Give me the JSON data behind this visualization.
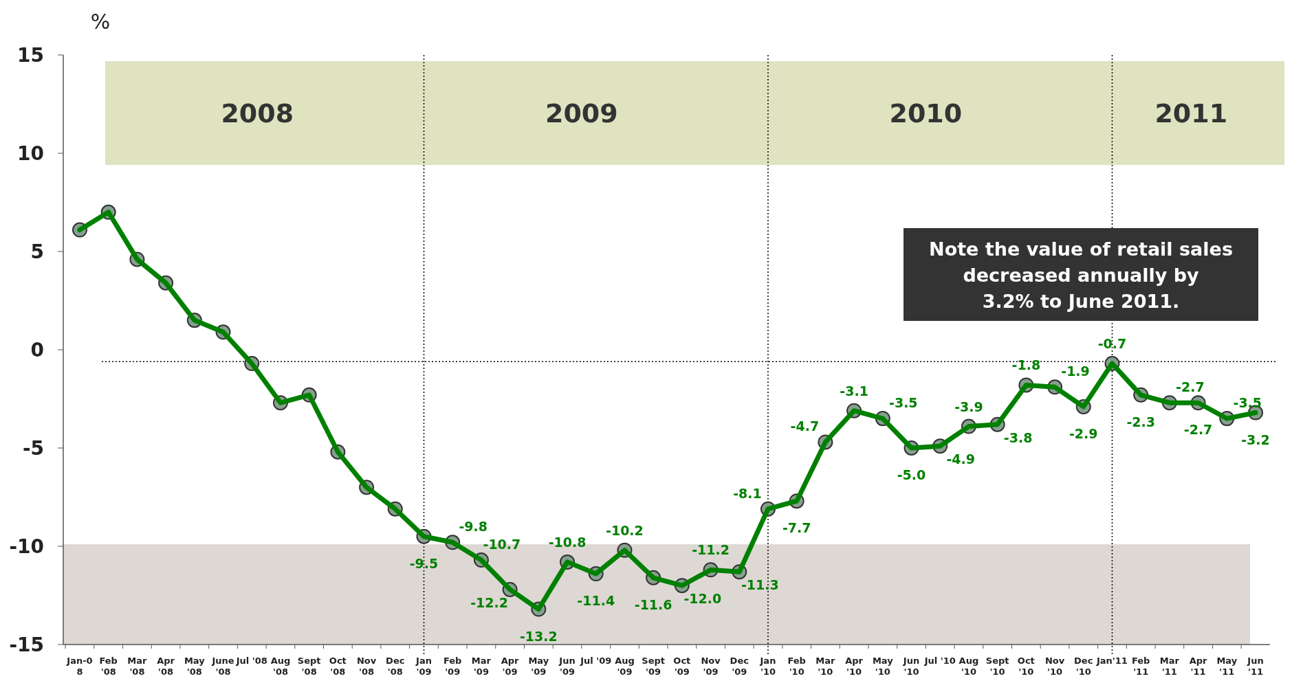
{
  "chart_data": {
    "type": "line",
    "ylabel": "%",
    "categories": [
      "Jan-0\n8",
      "Feb\n'08",
      "Mar\n'08",
      "Apr\n'08",
      "May\n'08",
      "June\n'08",
      "Jul '08",
      "Aug\n'08",
      "Sept\n'08",
      "Oct\n'08",
      "Nov\n'08",
      "Dec\n'08",
      "Jan\n'09",
      "Feb\n'09",
      "Mar\n'09",
      "Apr\n'09",
      "May\n'09",
      "Jun\n'09",
      "Jul '09",
      "Aug\n'09",
      "Sept\n'09",
      "Oct\n'09",
      "Nov\n'09",
      "Dec\n'09",
      "Jan\n'10",
      "Feb\n'10",
      "Mar\n'10",
      "Apr\n'10",
      "May\n'10",
      "Jun\n'10",
      "Jul '10",
      "Aug\n'10",
      "Sept\n'10",
      "Oct\n'10",
      "Nov\n'10",
      "Dec\n'10",
      "Jan'11",
      "Feb\n'11",
      "Mar\n'11",
      "Apr\n'11",
      "May\n'11",
      "Jun\n'11"
    ],
    "series": [
      {
        "color": "#008000",
        "values": [
          6.1,
          7.0,
          4.6,
          3.4,
          1.5,
          0.9,
          -0.7,
          -2.7,
          -2.3,
          -5.2,
          -7.0,
          -8.1,
          -9.5,
          -9.8,
          -10.7,
          -12.2,
          -13.2,
          -10.8,
          -11.4,
          -10.2,
          -11.6,
          -12.0,
          -11.2,
          -11.3,
          -8.1,
          -7.7,
          -4.7,
          -3.1,
          -3.5,
          -5.0,
          -4.9,
          -3.9,
          -3.8,
          -1.8,
          -1.9,
          -2.9,
          -0.7,
          -2.3,
          -2.7,
          -2.7,
          -3.5,
          -3.2
        ],
        "value_labels": [
          null,
          null,
          null,
          null,
          null,
          null,
          null,
          null,
          null,
          null,
          null,
          null,
          "-9.5",
          "-9.8",
          "-10.7",
          "-12.2",
          "-13.2",
          "-10.8",
          "-11.4",
          "-10.2",
          "-11.6",
          "-12.0",
          "-11.2",
          "-11.3",
          "-8.1",
          "-7.7",
          "-4.7",
          "-3.1",
          "-3.5",
          "-5.0",
          "-4.9",
          "-3.9",
          "-3.8",
          "-1.8",
          "-1.9",
          "-2.9",
          "-0.7",
          "-2.3",
          "-2.7",
          "-2.7",
          "-3.5",
          "-3.2"
        ]
      }
    ],
    "ylim": [
      -15,
      15
    ],
    "yticks": [
      -15,
      -10,
      -5,
      0,
      5,
      10,
      15
    ],
    "grid": false,
    "marker": "circle",
    "line_style": "solid",
    "bands": [
      {
        "axis": "y",
        "from": -15,
        "to": -9.9,
        "color": "#ddd8d4"
      }
    ],
    "ref_lines": [
      {
        "axis": "y",
        "value": -0.6,
        "line_style": "dotted"
      },
      {
        "axis": "x",
        "value": "Jan\n'09",
        "line_style": "dotted"
      },
      {
        "axis": "x",
        "value": "Jan\n'10",
        "line_style": "dotted"
      },
      {
        "axis": "x",
        "value": "Jan'11",
        "line_style": "dotted"
      }
    ],
    "annotations": [
      "2008",
      "2009",
      "2010",
      "2011",
      "Note the value of retail sales\ndecreased annually by\n3.2%  to June 2011."
    ]
  }
}
